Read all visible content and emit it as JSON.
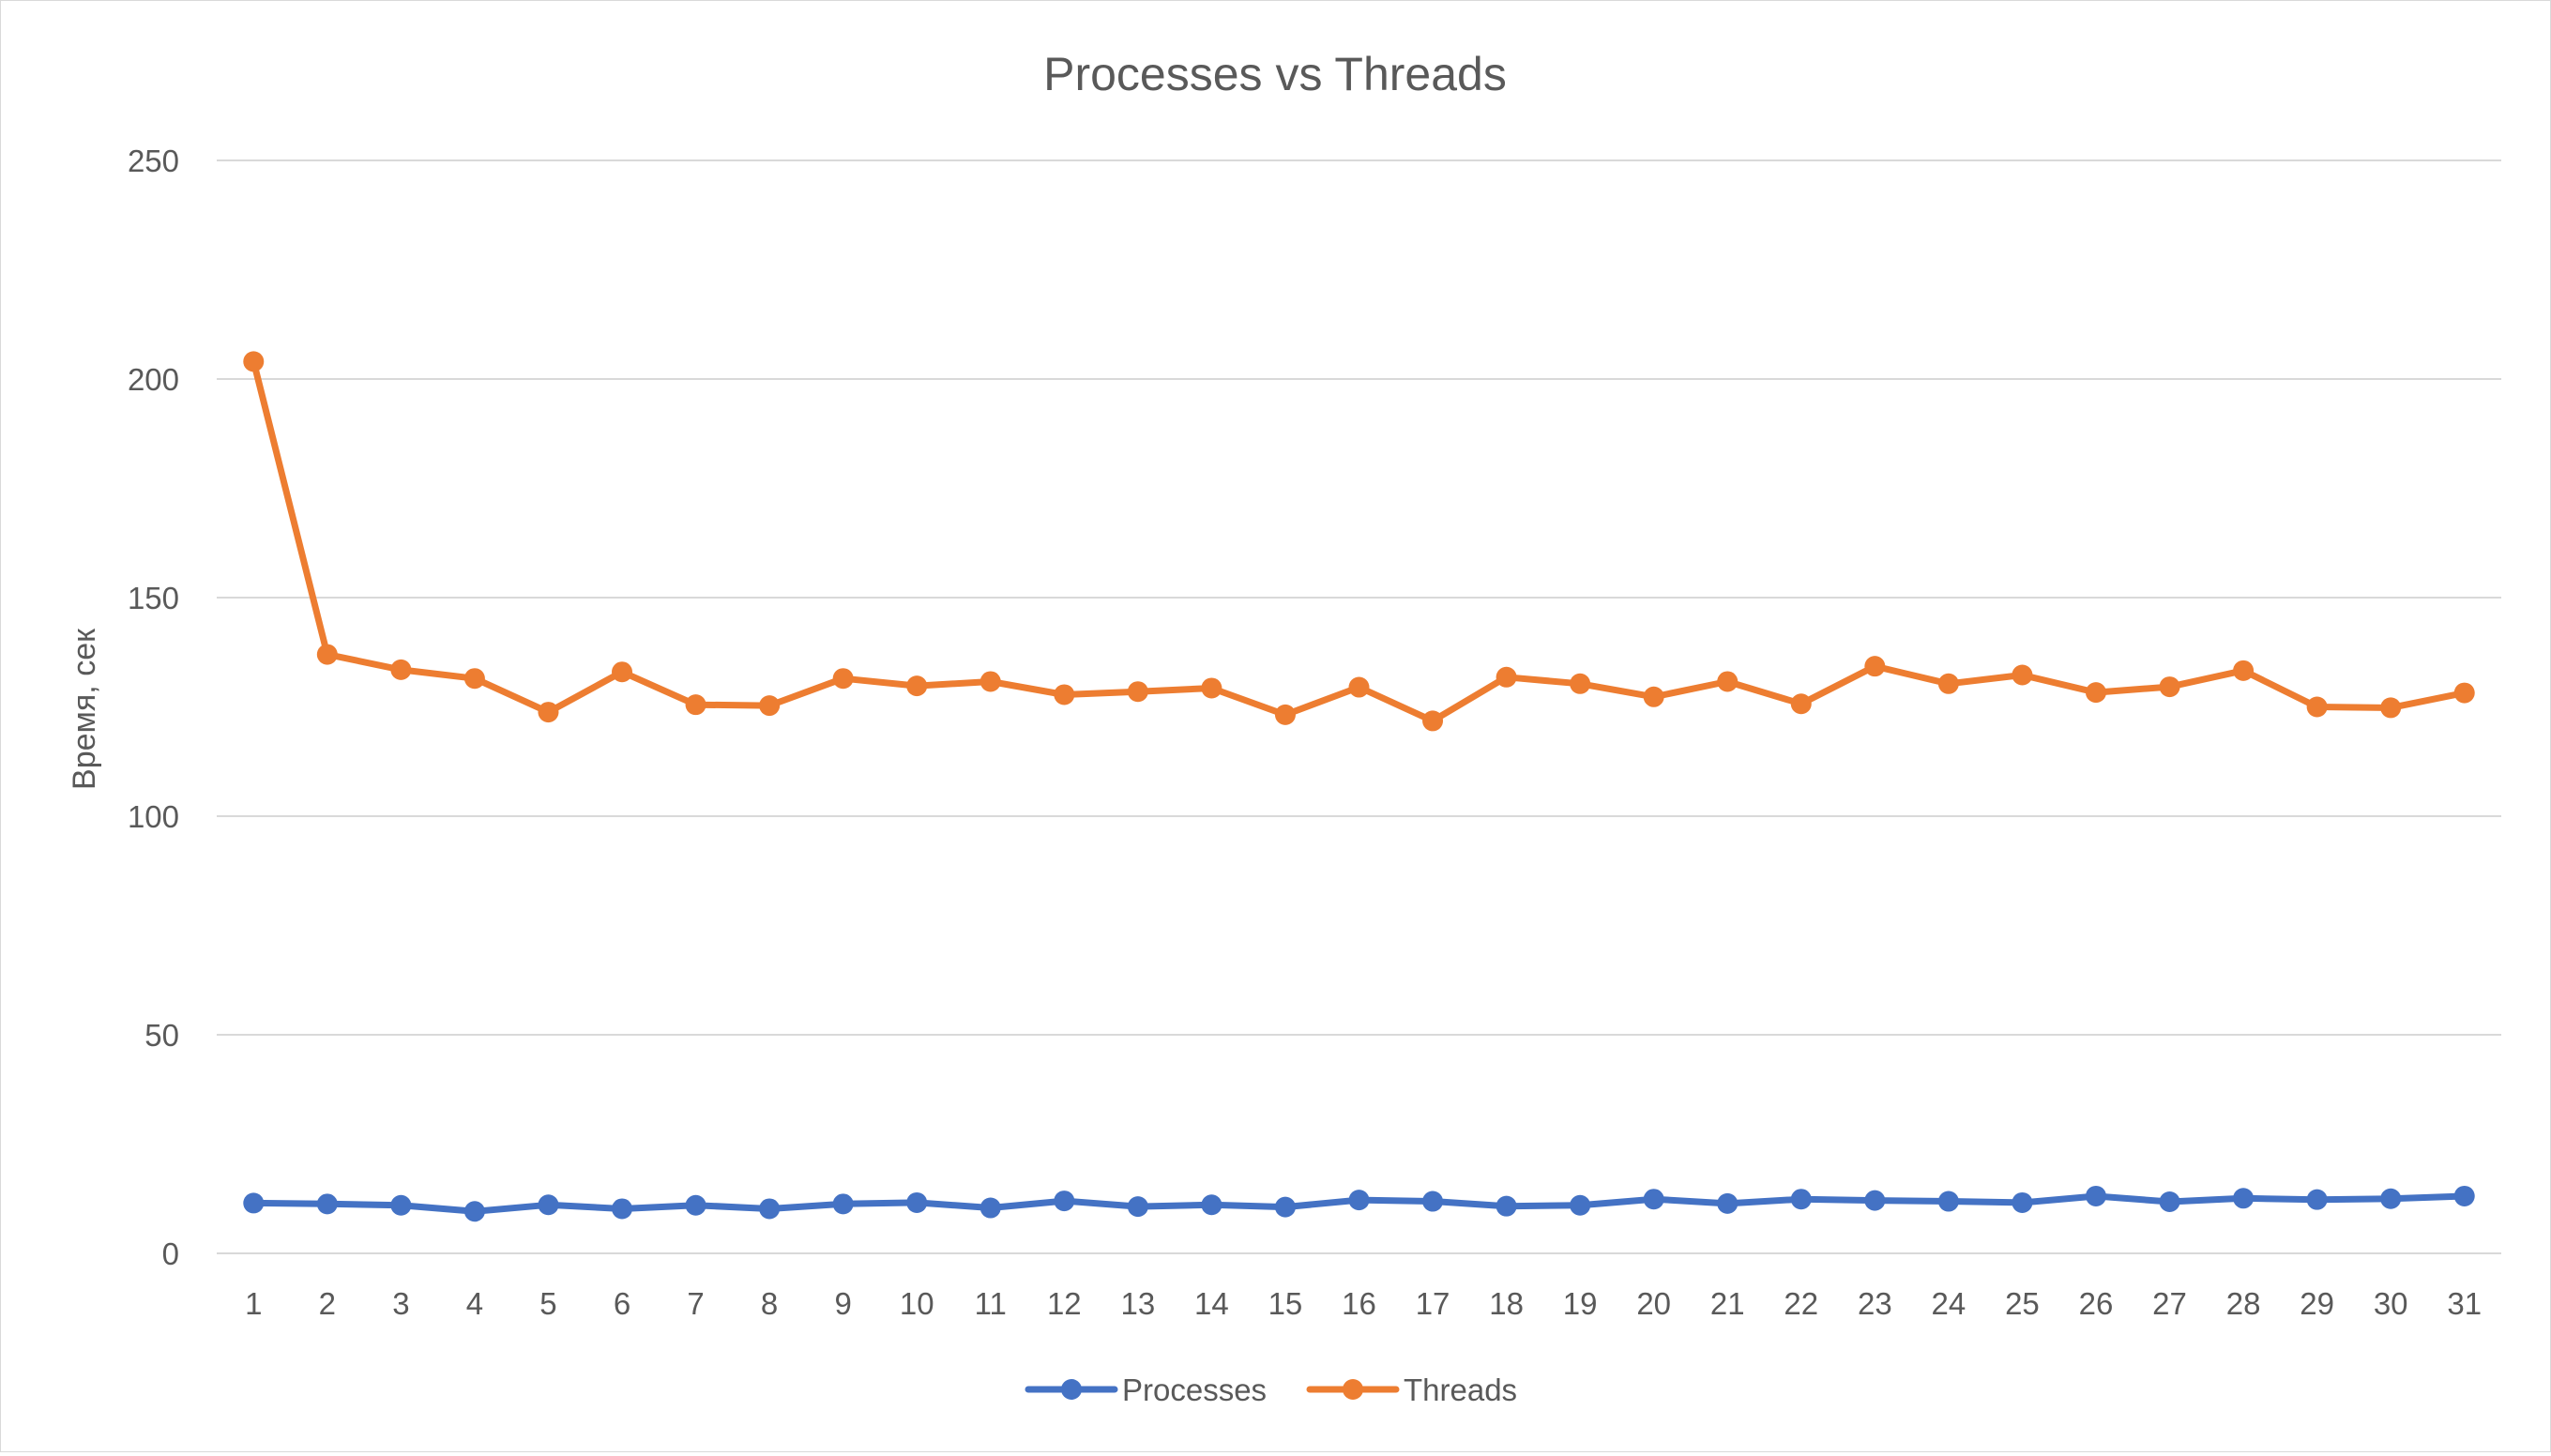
{
  "chart_data": {
    "type": "line",
    "title": "Processes vs Threads",
    "xlabel": "",
    "ylabel": "Время, сек",
    "ylim": [
      0,
      250
    ],
    "yticks": [
      0,
      50,
      100,
      150,
      200,
      250
    ],
    "grid": "horizontal",
    "legend_position": "bottom",
    "categories": [
      "1",
      "2",
      "3",
      "4",
      "5",
      "6",
      "7",
      "8",
      "9",
      "10",
      "11",
      "12",
      "13",
      "14",
      "15",
      "16",
      "17",
      "18",
      "19",
      "20",
      "21",
      "22",
      "23",
      "24",
      "25",
      "26",
      "27",
      "28",
      "29",
      "30",
      "31"
    ],
    "series": [
      {
        "name": "Processes",
        "color": "#4472c4",
        "values": [
          11.5,
          11.3,
          11.0,
          9.6,
          11.1,
          10.2,
          11.0,
          10.2,
          11.3,
          11.6,
          10.4,
          12.0,
          10.7,
          11.1,
          10.6,
          12.2,
          11.9,
          10.8,
          11.0,
          12.4,
          11.4,
          12.4,
          12.1,
          11.9,
          11.6,
          13.1,
          11.8,
          12.6,
          12.3,
          12.5,
          13.1
        ]
      },
      {
        "name": "Threads",
        "color": "#ed7d31",
        "values": [
          204,
          137,
          133.5,
          131.5,
          123.8,
          133,
          125.5,
          125.3,
          131.5,
          129.8,
          130.8,
          127.8,
          128.5,
          129.3,
          123.2,
          129.5,
          121.8,
          131.8,
          130.3,
          127.3,
          130.8,
          125.7,
          134.3,
          130.3,
          132.3,
          128.3,
          129.6,
          133.3,
          125,
          124.8,
          128.2
        ]
      }
    ]
  }
}
